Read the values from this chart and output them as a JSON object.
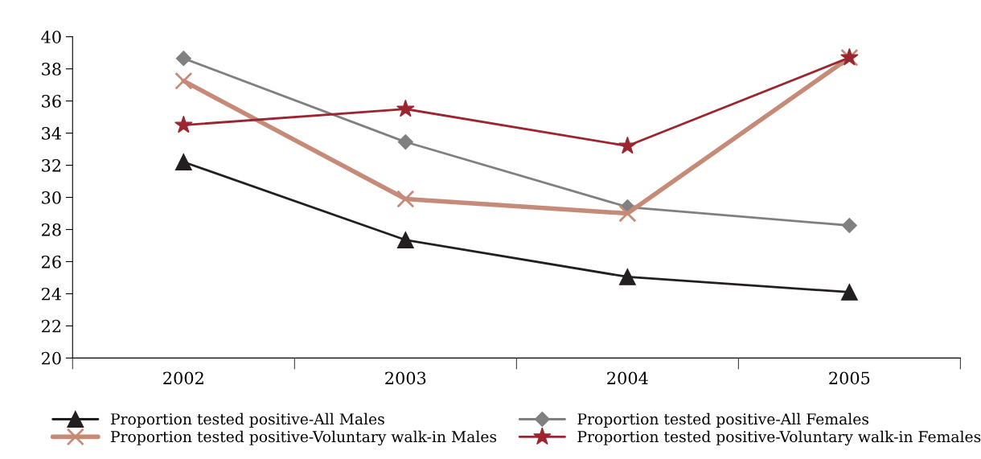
{
  "chart_data": {
    "type": "line",
    "categories": [
      "2002",
      "2003",
      "2004",
      "2005"
    ],
    "series": [
      {
        "name": "Proportion tested positive-All Males",
        "color": "#231f20",
        "values": [
          32.2,
          27.35,
          25.05,
          24.1
        ],
        "marker": "triangle"
      },
      {
        "name": "Proportion tested positive-All Females",
        "color": "#808080",
        "values": [
          38.65,
          33.45,
          29.4,
          28.25
        ],
        "marker": "diamond"
      },
      {
        "name": "Proportion tested positive-Voluntary walk-in Males",
        "color": "#c68a78",
        "values": [
          37.25,
          29.9,
          29.0,
          38.7
        ],
        "marker": "cross"
      },
      {
        "name": "Proportion tested positive-Voluntary walk-in Females",
        "color": "#9b2630",
        "values": [
          34.5,
          35.5,
          33.2,
          38.7
        ],
        "marker": "star"
      }
    ],
    "ylim": [
      20,
      40
    ],
    "yticks": [
      20,
      22,
      24,
      26,
      28,
      30,
      32,
      34,
      36,
      38,
      40
    ],
    "grid": false,
    "legend": "bottom",
    "line_style": "solid"
  }
}
